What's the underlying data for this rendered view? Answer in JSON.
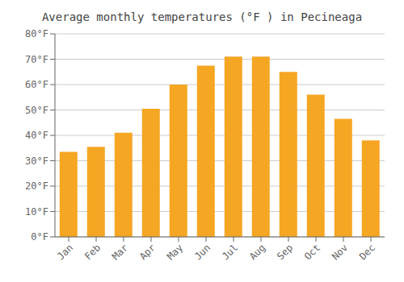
{
  "chart_data": {
    "type": "bar",
    "title": "Average monthly temperatures (°F ) in Pecineaga",
    "categories": [
      "Jan",
      "Feb",
      "Mar",
      "Apr",
      "May",
      "Jun",
      "Jul",
      "Aug",
      "Sep",
      "Oct",
      "Nov",
      "Dec"
    ],
    "values": [
      33.5,
      35.5,
      41.0,
      50.5,
      60.0,
      67.5,
      71.0,
      71.0,
      65.0,
      56.0,
      46.5,
      38.0
    ],
    "color": "#F5A623",
    "ylim": [
      0,
      80
    ],
    "yticks": [
      {
        "value": 0,
        "label": "0°F"
      },
      {
        "value": 10,
        "label": "10°F"
      },
      {
        "value": 20,
        "label": "20°F"
      },
      {
        "value": 30,
        "label": "30°F"
      },
      {
        "value": 40,
        "label": "40°F"
      },
      {
        "value": 50,
        "label": "50°F"
      },
      {
        "value": 60,
        "label": "60°F"
      },
      {
        "value": 70,
        "label": "70°F"
      },
      {
        "value": 80,
        "label": "80°F"
      }
    ],
    "grid": true
  }
}
